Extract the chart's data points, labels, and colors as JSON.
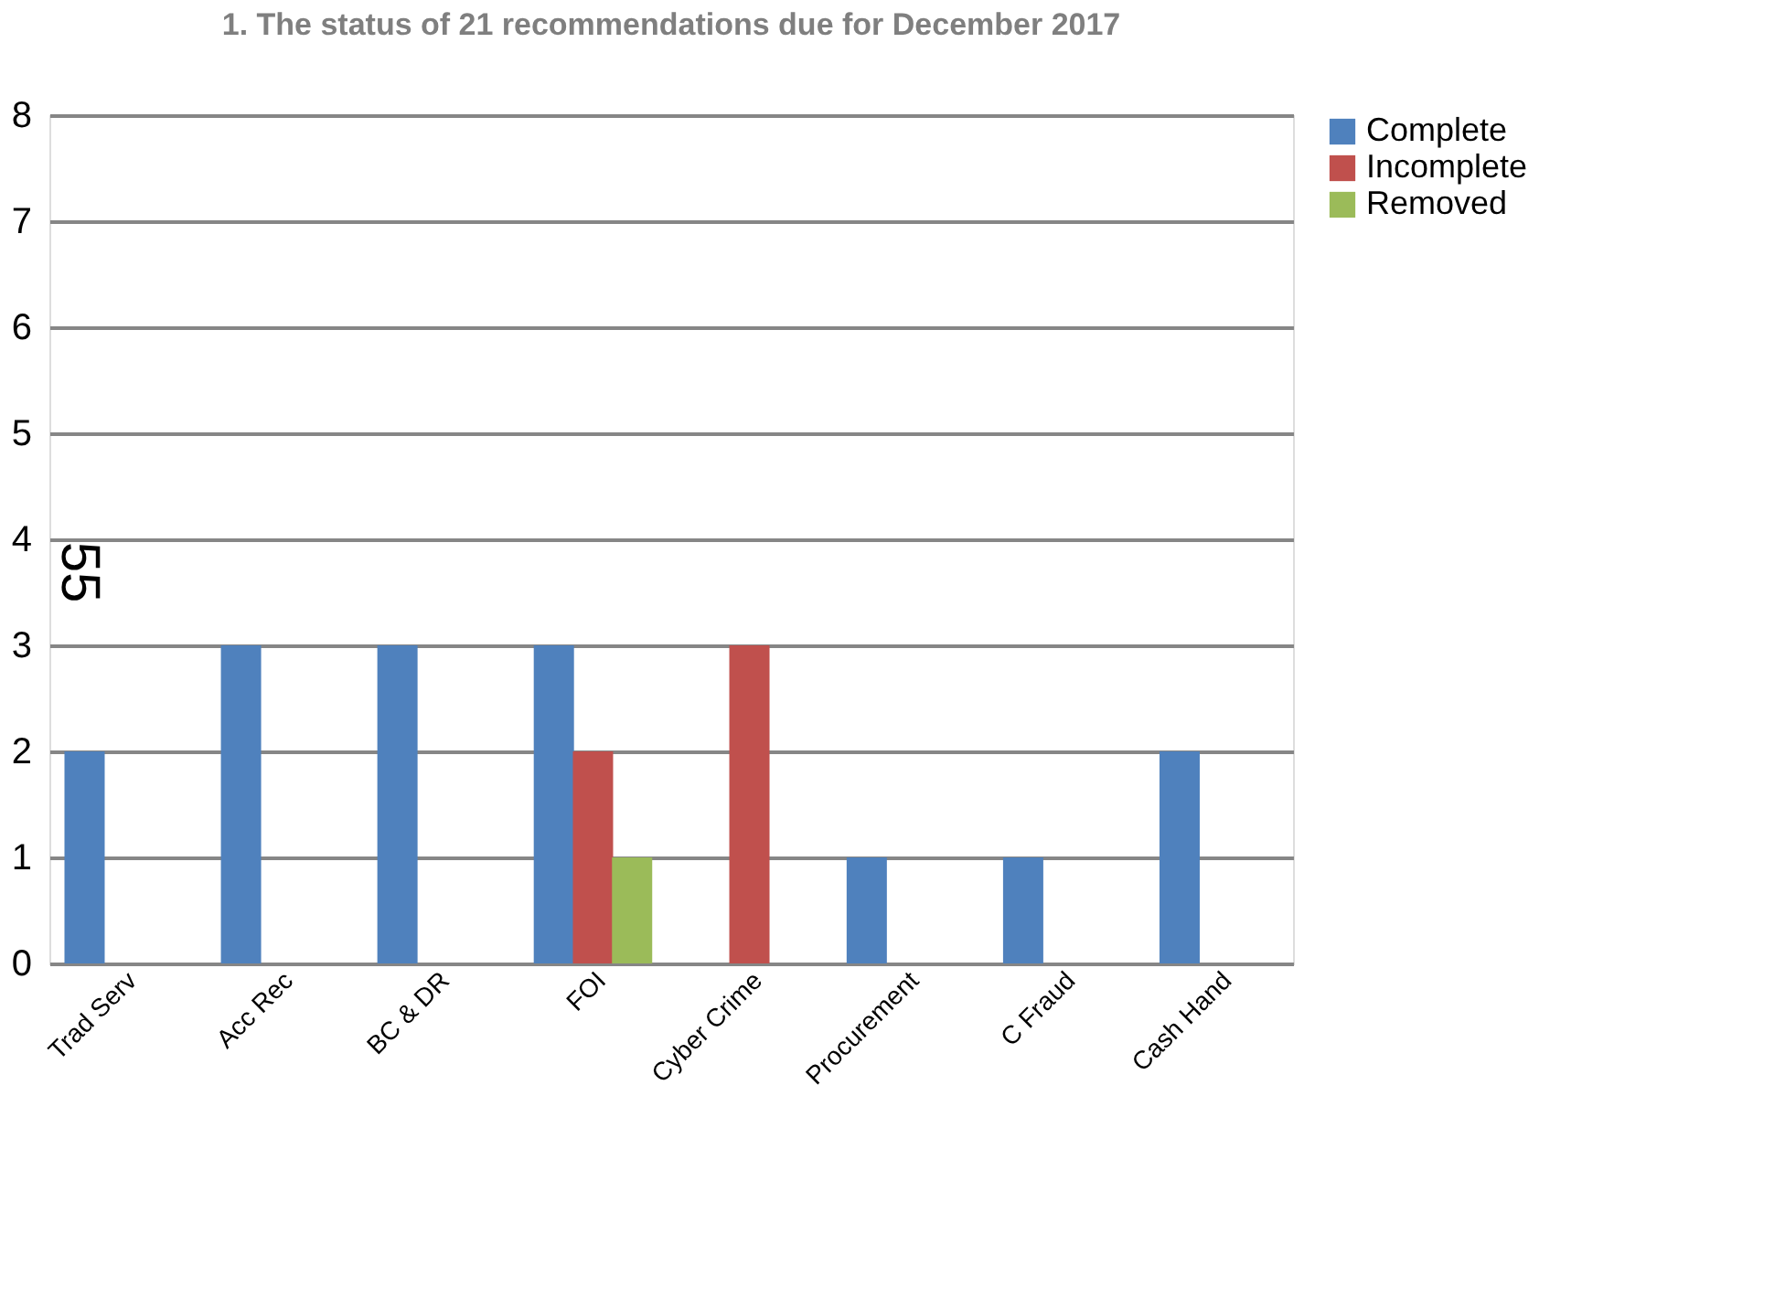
{
  "chart_data": {
    "type": "bar",
    "title": "1. The status of 21 recommendations due for December 2017",
    "categories": [
      "Trad Serv",
      "Acc Rec",
      "BC & DR",
      "FOI",
      "Cyber Crime",
      "Procurement",
      "C Fraud",
      "Cash Hand"
    ],
    "series": [
      {
        "name": "Complete",
        "color": "#4f81bd",
        "values": [
          2,
          3,
          3,
          3,
          0,
          1,
          1,
          2
        ]
      },
      {
        "name": "Incomplete",
        "color": "#c0504d",
        "values": [
          0,
          null,
          0,
          2,
          3,
          null,
          0,
          0
        ]
      },
      {
        "name": "Removed",
        "color": "#9bbb59",
        "values": [
          0,
          0,
          0,
          1,
          0,
          null,
          0,
          0
        ]
      }
    ],
    "ylim": [
      0,
      8
    ],
    "yticks": [
      0,
      1,
      2,
      3,
      4,
      5,
      6,
      7,
      8
    ],
    "grid": "y",
    "legend": "right",
    "annotations": [
      "55"
    ]
  }
}
